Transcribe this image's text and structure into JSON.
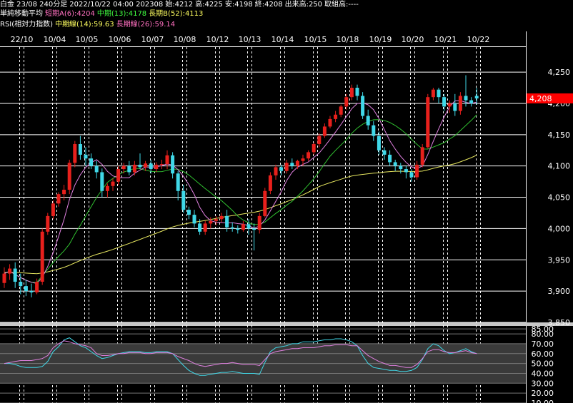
{
  "header": {
    "instrument": "白金 23/08 240分足",
    "datetime": "2022/10/22 04:00 202308",
    "open": "始:4212",
    "high": "高:4225",
    "low": "安:4198",
    "close": "終:4208",
    "volume": "出来高:250",
    "oi": "取組高:----"
  },
  "ma_legend": {
    "title": "単純移動平均",
    "short": "短期A(6):4204",
    "mid": "中期(13):4178",
    "long": "長期B(52):4113"
  },
  "rsi_legend": {
    "title": "RSI(相対力指数)",
    "mid": "中期線(14):59.63",
    "long": "長期線(26):59.14"
  },
  "last_price_label": "4,208",
  "colors": {
    "background": "#000000",
    "up_candle": "#e8201c",
    "down_candle": "#40d8e8",
    "ma_short": "#e080e0",
    "ma_mid": "#30c030",
    "ma_long": "#e8e860",
    "rsi_mid": "#e080e0",
    "rsi_long": "#40d8e8",
    "legend_short": "#ff70c0",
    "legend_mid": "#40ff40",
    "legend_long": "#ffff60",
    "price_tag": "#ff0000"
  },
  "chart_data": [
    {
      "type": "candlestick",
      "x_date_labels": [
        "22/10",
        "10/04",
        "10/05",
        "10/06",
        "10/07",
        "10/08",
        "10/12",
        "10/13",
        "10/14",
        "10/15",
        "10/18",
        "10/19",
        "10/20",
        "10/21",
        "10/22"
      ],
      "y_ticks": [
        "4,250",
        "4,200",
        "4,150",
        "4,100",
        "4,050",
        "4,000",
        "3,950",
        "3,900",
        "3,850"
      ],
      "ylim": [
        3850,
        4290
      ],
      "candles": [
        [
          3913,
          3938,
          3905,
          3928
        ],
        [
          3928,
          3943,
          3918,
          3936
        ],
        [
          3936,
          3946,
          3905,
          3915
        ],
        [
          3915,
          3928,
          3895,
          3908
        ],
        [
          3908,
          3918,
          3892,
          3900
        ],
        [
          3900,
          3912,
          3890,
          3898
        ],
        [
          3898,
          3920,
          3895,
          3915
        ],
        [
          3915,
          4000,
          3910,
          3995
        ],
        [
          3995,
          4025,
          3990,
          4020
        ],
        [
          4020,
          4045,
          4015,
          4040
        ],
        [
          4040,
          4058,
          4035,
          4055
        ],
        [
          4055,
          4070,
          4045,
          4062
        ],
        [
          4062,
          4110,
          4055,
          4105
        ],
        [
          4105,
          4140,
          4098,
          4135
        ],
        [
          4135,
          4148,
          4110,
          4118
        ],
        [
          4118,
          4130,
          4100,
          4112
        ],
        [
          4112,
          4120,
          4095,
          4100
        ],
        [
          4100,
          4108,
          4080,
          4090
        ],
        [
          4090,
          4096,
          4050,
          4060
        ],
        [
          4060,
          4072,
          4050,
          4068
        ],
        [
          4068,
          4080,
          4060,
          4075
        ],
        [
          4075,
          4100,
          4070,
          4095
        ],
        [
          4095,
          4105,
          4088,
          4100
        ],
        [
          4100,
          4108,
          4085,
          4090
        ],
        [
          4090,
          4108,
          4085,
          4102
        ],
        [
          4102,
          4120,
          4095,
          4098
        ],
        [
          4098,
          4108,
          4092,
          4104
        ],
        [
          4104,
          4110,
          4088,
          4095
        ],
        [
          4095,
          4106,
          4090,
          4102
        ],
        [
          4102,
          4110,
          4095,
          4103
        ],
        [
          4103,
          4125,
          4095,
          4117
        ],
        [
          4117,
          4122,
          4080,
          4088
        ],
        [
          4088,
          4092,
          4045,
          4060
        ],
        [
          4060,
          4070,
          4025,
          4030
        ],
        [
          4030,
          4035,
          4015,
          4022
        ],
        [
          4022,
          4030,
          4002,
          4008
        ],
        [
          4008,
          4015,
          3990,
          3995
        ],
        [
          3995,
          4012,
          3990,
          4008
        ],
        [
          4008,
          4018,
          4000,
          4012
        ],
        [
          4012,
          4020,
          4005,
          4015
        ],
        [
          4015,
          4025,
          4010,
          4020
        ],
        [
          4020,
          4030,
          3995,
          4002
        ],
        [
          4002,
          4010,
          3995,
          4000
        ],
        [
          4000,
          4005,
          3992,
          3998
        ],
        [
          3998,
          4012,
          3995,
          4007
        ],
        [
          4007,
          4015,
          3990,
          4000
        ],
        [
          4000,
          4008,
          3965,
          3998
        ],
        [
          3998,
          4025,
          3992,
          4020
        ],
        [
          4020,
          4065,
          4018,
          4060
        ],
        [
          4060,
          4090,
          4055,
          4085
        ],
        [
          4085,
          4102,
          4078,
          4098
        ],
        [
          4098,
          4102,
          4085,
          4092
        ],
        [
          4092,
          4110,
          4088,
          4105
        ],
        [
          4105,
          4112,
          4095,
          4100
        ],
        [
          4100,
          4110,
          4095,
          4108
        ],
        [
          4108,
          4118,
          4100,
          4112
        ],
        [
          4112,
          4125,
          4108,
          4122
        ],
        [
          4122,
          4138,
          4118,
          4135
        ],
        [
          4135,
          4152,
          4130,
          4148
        ],
        [
          4148,
          4168,
          4145,
          4163
        ],
        [
          4163,
          4180,
          4160,
          4175
        ],
        [
          4175,
          4188,
          4170,
          4182
        ],
        [
          4182,
          4198,
          4178,
          4195
        ],
        [
          4195,
          4215,
          4190,
          4210
        ],
        [
          4210,
          4230,
          4205,
          4225
        ],
        [
          4225,
          4230,
          4205,
          4212
        ],
        [
          4212,
          4218,
          4175,
          4180
        ],
        [
          4180,
          4190,
          4158,
          4165
        ],
        [
          4165,
          4172,
          4140,
          4148
        ],
        [
          4148,
          4155,
          4118,
          4125
        ],
        [
          4125,
          4130,
          4110,
          4118
        ],
        [
          4118,
          4125,
          4100,
          4106
        ],
        [
          4106,
          4110,
          4092,
          4100
        ],
        [
          4100,
          4105,
          4088,
          4095
        ],
        [
          4095,
          4100,
          4080,
          4090
        ],
        [
          4090,
          4095,
          4075,
          4082
        ],
        [
          4082,
          4108,
          4078,
          4102
        ],
        [
          4102,
          4135,
          4098,
          4130
        ],
        [
          4130,
          4215,
          4128,
          4210
        ],
        [
          4210,
          4225,
          4205,
          4222
        ],
        [
          4222,
          4225,
          4200,
          4210
        ],
        [
          4210,
          4215,
          4188,
          4195
        ],
        [
          4195,
          4205,
          4185,
          4200
        ],
        [
          4200,
          4215,
          4180,
          4188
        ],
        [
          4188,
          4218,
          4182,
          4212
        ],
        [
          4212,
          4245,
          4195,
          4205
        ],
        [
          4205,
          4210,
          4195,
          4200
        ],
        [
          4212,
          4225,
          4198,
          4208
        ]
      ]
    },
    {
      "type": "line",
      "title": "RSI(相対力指数)",
      "y_ticks": [
        "85.00",
        "80.00",
        "70.00",
        "60.00",
        "50.00",
        "40.00",
        "30.00",
        "20.00",
        "10.00"
      ],
      "ylim": [
        10,
        88
      ],
      "series": [
        {
          "name": "中期線(14)",
          "values": [
            50,
            51,
            52,
            53,
            53,
            53,
            54,
            55,
            58,
            66,
            70,
            73,
            72,
            70,
            69,
            68,
            66,
            60,
            58,
            58,
            59,
            60,
            60,
            61,
            61,
            61,
            60,
            60,
            61,
            61,
            61,
            60,
            57,
            55,
            53,
            50,
            48,
            47,
            48,
            49,
            50,
            50,
            51,
            50,
            49,
            49,
            49,
            48,
            54,
            60,
            62,
            63,
            64,
            65,
            65,
            66,
            66,
            66,
            67,
            68,
            68,
            69,
            69,
            69,
            68,
            68,
            63,
            58,
            55,
            52,
            50,
            48,
            48,
            47,
            46,
            46,
            49,
            55,
            62,
            64,
            64,
            62,
            61,
            61,
            62,
            63,
            61,
            60
          ]
        },
        {
          "name": "長期線(26)",
          "values": [
            50,
            50,
            49,
            47,
            46,
            46,
            46,
            47,
            52,
            62,
            67,
            74,
            76,
            72,
            68,
            66,
            62,
            58,
            55,
            56,
            58,
            60,
            61,
            62,
            62,
            62,
            61,
            61,
            62,
            62,
            62,
            60,
            54,
            48,
            43,
            40,
            38,
            38,
            39,
            40,
            41,
            41,
            42,
            41,
            40,
            40,
            40,
            39,
            51,
            62,
            66,
            67,
            68,
            70,
            70,
            72,
            72,
            72,
            73,
            74,
            74,
            75,
            75,
            74,
            72,
            68,
            58,
            50,
            46,
            45,
            44,
            43,
            43,
            42,
            42,
            43,
            46,
            54,
            65,
            70,
            68,
            63,
            60,
            61,
            63,
            65,
            62,
            60
          ]
        }
      ]
    }
  ]
}
